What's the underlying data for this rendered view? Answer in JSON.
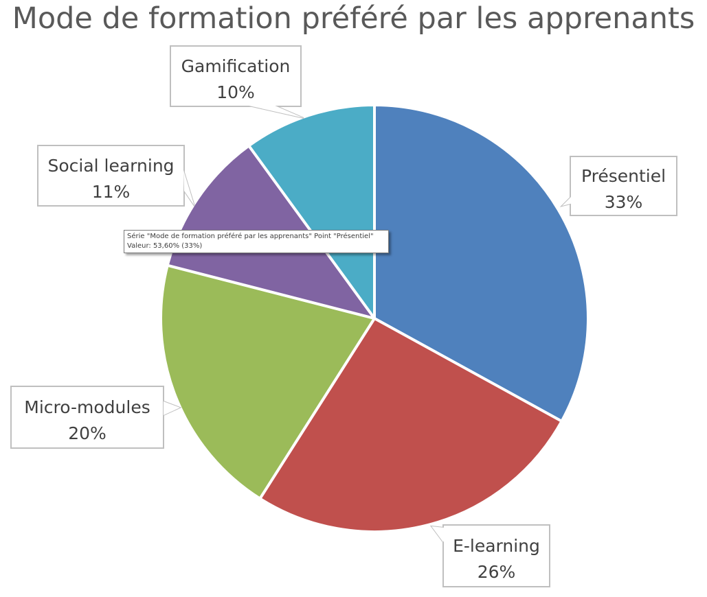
{
  "chart_data": {
    "type": "pie",
    "title": "Mode de formation préféré par les apprenants",
    "slices": [
      {
        "label": "Présentiel",
        "value": 33,
        "display": "33%",
        "color": "#4f81bd"
      },
      {
        "label": "E-learning",
        "value": 26,
        "display": "26%",
        "color": "#c0504d"
      },
      {
        "label": "Micro-modules",
        "value": 20,
        "display": "20%",
        "color": "#9bbb59"
      },
      {
        "label": "Social learning",
        "value": 11,
        "display": "11%",
        "color": "#8064a2"
      },
      {
        "label": "Gamification",
        "value": 10,
        "display": "10%",
        "color": "#4bacc6"
      }
    ]
  },
  "tooltip": {
    "line1": "Série \"Mode de formation préféré par les apprenants\" Point \"Présentiel\"",
    "line2": "Valeur: 53,60% (33%)"
  }
}
